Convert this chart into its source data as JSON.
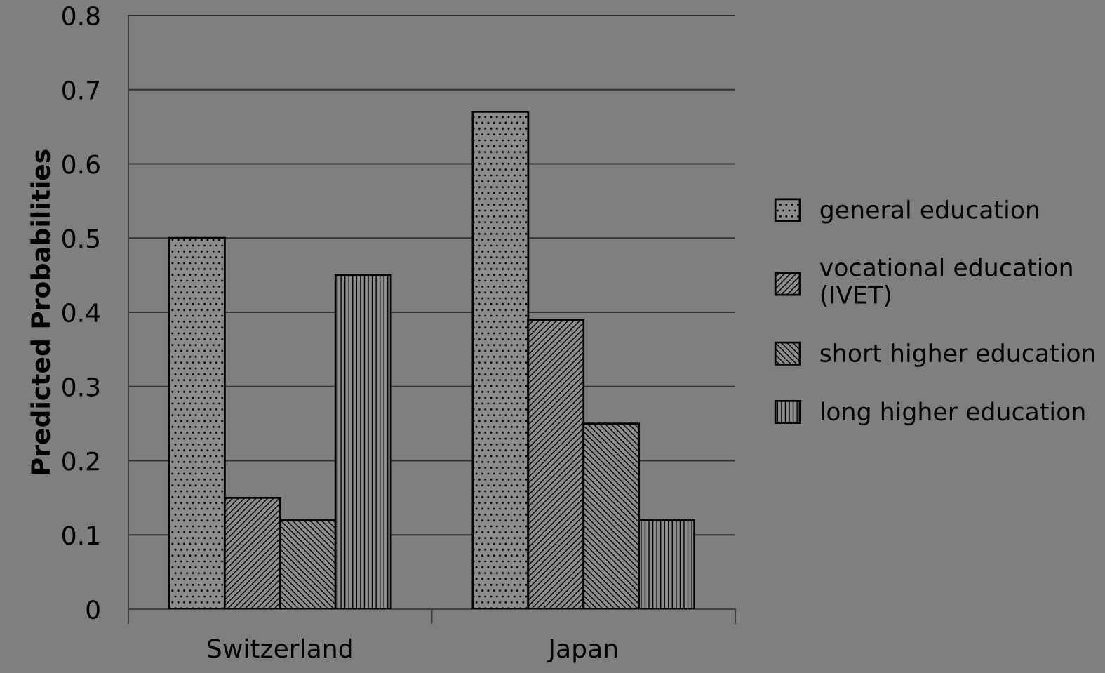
{
  "chart_data": {
    "type": "bar",
    "ylabel": "Predicted Probabilities",
    "categories": [
      "Switzerland",
      "Japan"
    ],
    "series": [
      {
        "name": "general education",
        "color": "#000000",
        "values": [
          0.5,
          0.67
        ]
      },
      {
        "name": "vocational education\n(IVET)",
        "color": "#000000",
        "values": [
          0.15,
          0.39
        ]
      },
      {
        "name": "short higher education",
        "color": "#000000",
        "values": [
          0.12,
          0.25
        ]
      },
      {
        "name": "long higher education",
        "color": "#000000",
        "values": [
          0.45,
          0.12
        ]
      }
    ],
    "ylim": [
      0,
      0.8
    ],
    "yticks": [
      0,
      0.1,
      0.2,
      0.3,
      0.4,
      0.5,
      0.6,
      0.7,
      0.8
    ],
    "grid": "y",
    "legend": "right"
  }
}
